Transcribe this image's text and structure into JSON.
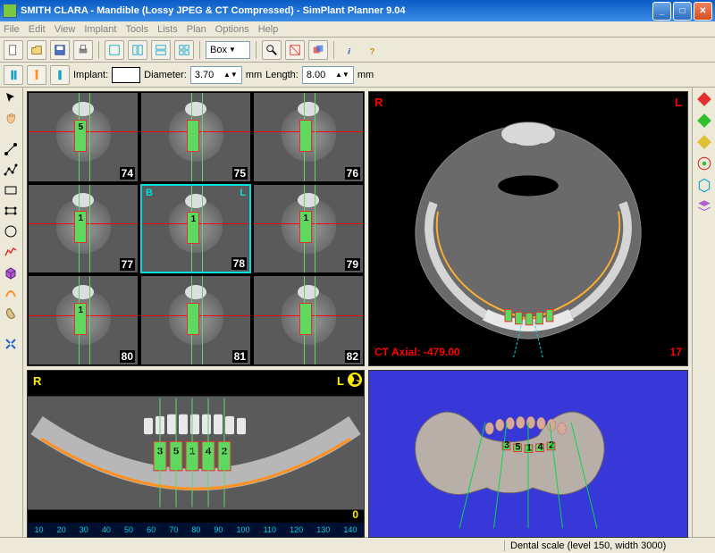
{
  "window": {
    "title": "SMITH CLARA - Mandible (Lossy JPEG & CT Compressed) - SimPlant Planner 9.04"
  },
  "menu": {
    "items": [
      "File",
      "Edit",
      "View",
      "Implant",
      "Tools",
      "Lists",
      "Plan",
      "Options",
      "Help"
    ]
  },
  "toolbar": {
    "box_label": "Box",
    "implant_label": "Implant:",
    "diameter_label": "Diameter:",
    "diameter_value": "3.70",
    "length_label": "Length:",
    "length_value": "8.00",
    "unit_mm": "mm"
  },
  "grid9": {
    "slices": [
      {
        "num": "74",
        "implant": "5",
        "selected": false
      },
      {
        "num": "75",
        "implant": "",
        "selected": false
      },
      {
        "num": "76",
        "implant": "",
        "selected": false
      },
      {
        "num": "77",
        "implant": "1",
        "selected": false
      },
      {
        "num": "78",
        "implant": "1",
        "selected": true,
        "b": "B",
        "l": "L"
      },
      {
        "num": "79",
        "implant": "1",
        "selected": false
      },
      {
        "num": "80",
        "implant": "1",
        "selected": false
      },
      {
        "num": "81",
        "implant": "",
        "selected": false
      },
      {
        "num": "82",
        "implant": "",
        "selected": false
      }
    ]
  },
  "axial": {
    "r": "R",
    "l": "L",
    "label": "CT Axial: -479.00",
    "slice_num": "17"
  },
  "panoramic": {
    "r": "R",
    "l": "L",
    "zero": "0",
    "implants": [
      "3",
      "5",
      "1",
      "4",
      "2"
    ],
    "scale": [
      "10",
      "20",
      "30",
      "40",
      "50",
      "60",
      "70",
      "80",
      "90",
      "100",
      "110",
      "120",
      "130",
      "140"
    ]
  },
  "threed": {
    "implants": [
      "3",
      "5",
      "1",
      "4",
      "2"
    ]
  },
  "status": {
    "scale": "Dental scale (level 150, width 3000)"
  },
  "colors": {
    "implant_green": "#5fd85f",
    "crosshair_red": "#ff0000",
    "cyan": "#00e0e0",
    "yellow": "#ffed00",
    "nerve_orange": "#ff9020",
    "threed_bg": "#3838d8"
  }
}
